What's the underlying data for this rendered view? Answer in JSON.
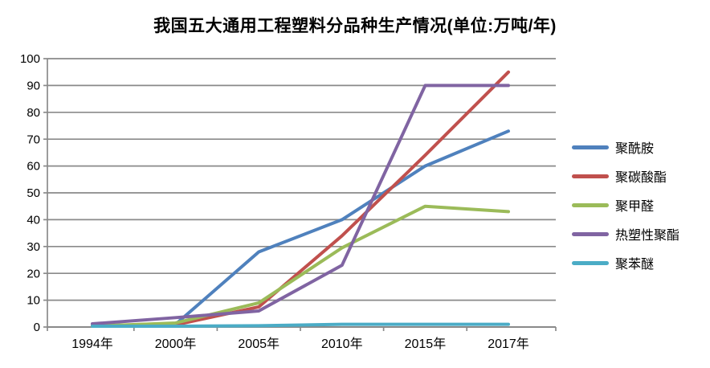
{
  "chart_data": {
    "type": "line",
    "title": "我国五大通用工程塑料分品种生产情况(单位:万吨/年)",
    "unit": "万吨/年",
    "categories": [
      "1994年",
      "2000年",
      "2005年",
      "2010年",
      "2015年",
      "2017年"
    ],
    "series": [
      {
        "name": "聚酰胺",
        "color": "#4F81BD",
        "values": [
          0.5,
          1.0,
          28,
          40,
          60,
          73
        ]
      },
      {
        "name": "聚碳酸酯",
        "color": "#C0504D",
        "values": [
          0.3,
          0.8,
          7.5,
          34,
          64,
          95
        ]
      },
      {
        "name": "聚甲醛",
        "color": "#9BBB59",
        "values": [
          0.3,
          1.5,
          9,
          29.5,
          45,
          43
        ]
      },
      {
        "name": "热塑性聚酯",
        "color": "#8064A2",
        "values": [
          1.2,
          3.5,
          6,
          23,
          90,
          90
        ]
      },
      {
        "name": "聚苯醚",
        "color": "#4BACC6",
        "values": [
          0.3,
          0.3,
          0.5,
          1,
          1,
          1
        ]
      }
    ],
    "ylim": [
      0,
      100
    ],
    "yticks": [
      0,
      10,
      20,
      30,
      40,
      50,
      60,
      70,
      80,
      90,
      100
    ],
    "grid": true,
    "legend_position": "right",
    "colors": {
      "gridline": "#8A8A8A",
      "axis": "#8A8A8A",
      "tick_text": "#000000",
      "background": "#FFFFFF"
    }
  }
}
